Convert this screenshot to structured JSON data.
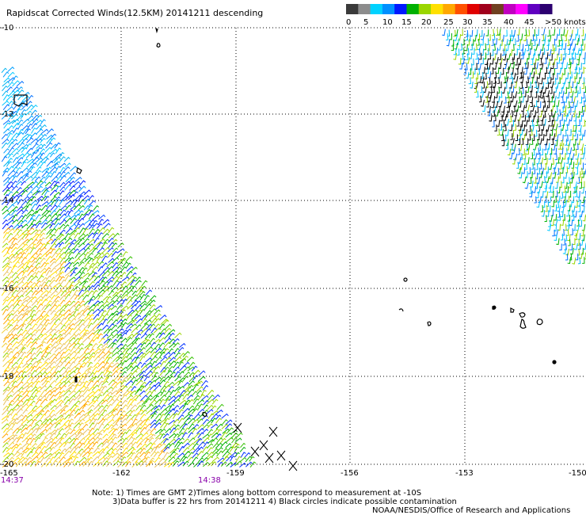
{
  "title": "Rapidscat Corrected Winds(12.5KM) 20141211 descending",
  "legend": {
    "colors": [
      "#3a3a3a",
      "#8c8c8c",
      "#00d2ff",
      "#0090ff",
      "#0018ff",
      "#00b000",
      "#9ad600",
      "#ffe000",
      "#ffa800",
      "#ff5000",
      "#e00000",
      "#a0001c",
      "#704020",
      "#c000c0",
      "#ff00ff",
      "#6000c0",
      "#2c0070"
    ],
    "labels": [
      "0",
      "5",
      "10",
      "15",
      "20",
      "25",
      "30",
      "35",
      "40",
      "45",
      ">50 knots"
    ]
  },
  "axes": {
    "lat_labels": [
      "-10",
      "-12",
      "-14",
      "-16",
      "-18",
      "-20"
    ],
    "lon_labels": [
      "-165",
      "-162",
      "-159",
      "-156",
      "-153",
      "-150"
    ]
  },
  "times": [
    "14:37",
    "14:38"
  ],
  "notes": [
    "Note: 1) Times are GMT 2)Times along bottom correspond to measurement at -10S",
    "3)Data buffer is 22 hrs from 20141211 4) Black circles indicate possible contamination",
    "NOAA/NESDIS/Office of Research and Applications"
  ],
  "colors": {
    "time_label": "#8800aa",
    "grid": "#000000",
    "coast": "#000000"
  }
}
